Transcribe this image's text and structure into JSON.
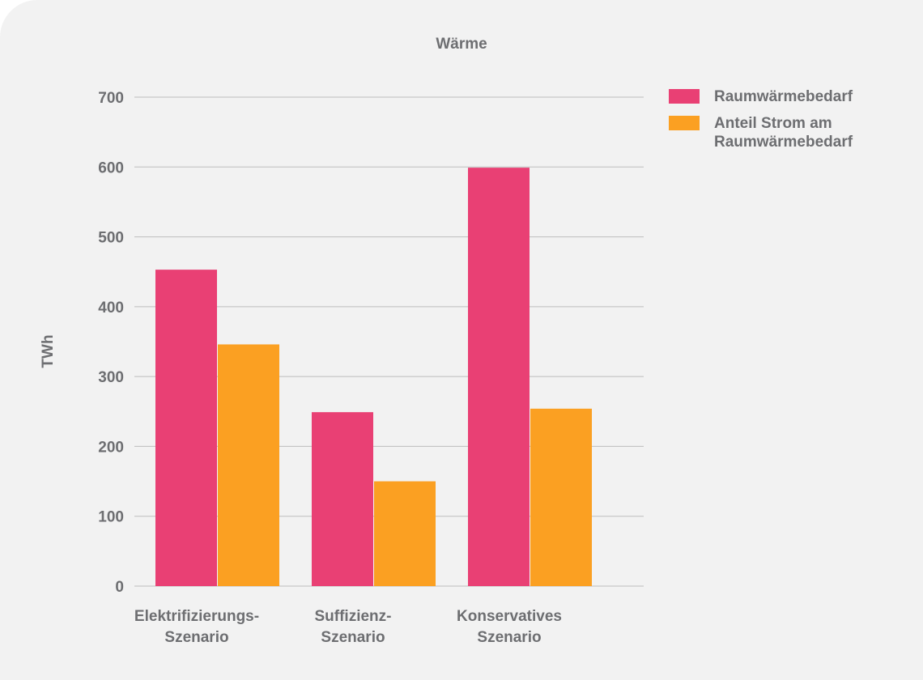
{
  "colors": {
    "background": "#f2f2f2",
    "grid": "#bcbcbc",
    "text": "#6d6e71",
    "series1": "#e94074",
    "series2": "#fba022"
  },
  "chart_data": {
    "type": "bar",
    "title": "Wärme",
    "ylabel": "TWh",
    "xlabel": "",
    "ylim": [
      0,
      700
    ],
    "yticks": [
      0,
      100,
      200,
      300,
      400,
      500,
      600,
      700
    ],
    "categories": [
      [
        "Elektrifizierungs-",
        "Szenario"
      ],
      [
        "Suffizienz-",
        "Szenario"
      ],
      [
        "Konservatives",
        "Szenario"
      ]
    ],
    "series": [
      {
        "name": "Raumwärmebedarf",
        "values": [
          453,
          249,
          599
        ]
      },
      {
        "name": "Anteil Strom am Raumwärmebedarf",
        "values": [
          346,
          150,
          254
        ]
      }
    ],
    "grid": true,
    "legend_position": "top-right"
  }
}
